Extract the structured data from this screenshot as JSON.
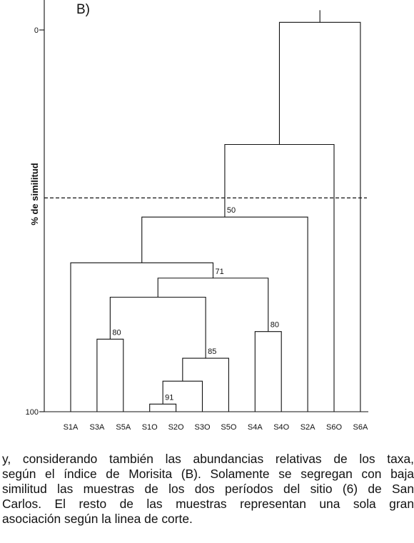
{
  "figure": {
    "panel_label": "B)",
    "y_axis_label": "% de similitud",
    "y_ticks": [
      {
        "value": 0,
        "label": "0"
      },
      {
        "value": 100,
        "label": "100"
      }
    ]
  },
  "chart_data": {
    "type": "dendrogram",
    "leaves": [
      "S1A",
      "S3A",
      "S5A",
      "S1O",
      "S2O",
      "S3O",
      "S5O",
      "S4A",
      "S4O",
      "S2A",
      "S6O",
      "S6A"
    ],
    "ylabel": "% de similitud",
    "ylim": [
      0,
      100
    ],
    "cut_line": 44,
    "merges": [
      {
        "id": "m1",
        "children": [
          "S1O",
          "S2O"
        ],
        "height": 98,
        "label": "91"
      },
      {
        "id": "m2",
        "children": [
          "m1",
          "S3O"
        ],
        "height": 92,
        "label": ""
      },
      {
        "id": "m3",
        "children": [
          "m2",
          "S5O"
        ],
        "height": 86,
        "label": "85"
      },
      {
        "id": "m4",
        "children": [
          "S3A",
          "S5A"
        ],
        "height": 81,
        "label": "80"
      },
      {
        "id": "m5",
        "children": [
          "S4A",
          "S4O"
        ],
        "height": 79,
        "label": "80"
      },
      {
        "id": "m6",
        "children": [
          "m4",
          "m3"
        ],
        "height": 70,
        "label": ""
      },
      {
        "id": "m7",
        "children": [
          "m6",
          "m5"
        ],
        "height": 65,
        "label": "71"
      },
      {
        "id": "m8",
        "children": [
          "S1A",
          "m7"
        ],
        "height": 61,
        "label": ""
      },
      {
        "id": "m9",
        "children": [
          "m8",
          "S2A"
        ],
        "height": 49,
        "label": "50"
      },
      {
        "id": "m10",
        "children": [
          "m9",
          "S6O"
        ],
        "height": 30,
        "label": ""
      },
      {
        "id": "m11",
        "children": [
          "m10",
          "S6A"
        ],
        "height": -2,
        "label": ""
      }
    ]
  },
  "caption": {
    "lines": [
      "y, considerando también las abundancias relativas de los taxa,",
      "según el índice de Morisita (B). Solamente se segregan con baja",
      "similitud las muestras de los dos períodos del sitio (6) de San",
      "Carlos. El resto de las muestras representan una sola gran",
      "asociación según la linea de corte."
    ]
  }
}
